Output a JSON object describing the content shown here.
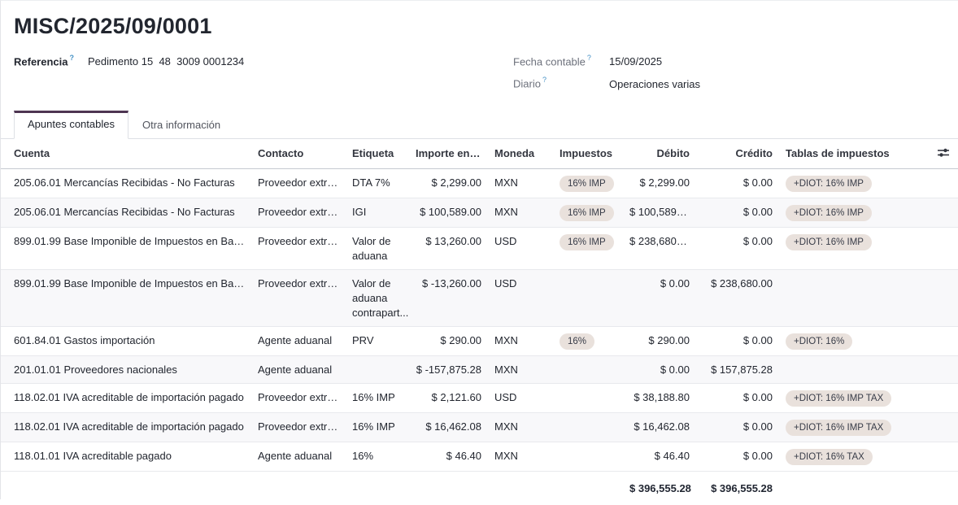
{
  "page": {
    "title": "MISC/2025/09/0001",
    "fields": {
      "referencia": {
        "label": "Referencia",
        "help": "?",
        "value": "Pedimento 15  48  3009 0001234"
      },
      "fecha_contable": {
        "label": "Fecha contable",
        "help": "?",
        "value": "15/09/2025"
      },
      "diario": {
        "label": "Diario",
        "help": "?",
        "value": "Operaciones varias"
      }
    },
    "tabs": [
      {
        "label": "Apuntes contables",
        "active": true
      },
      {
        "label": "Otra información",
        "active": false
      }
    ],
    "table": {
      "columns": [
        "Cuenta",
        "Contacto",
        "Etiqueta",
        "Importe en m...",
        "Moneda",
        "Impuestos",
        "Débito",
        "Crédito",
        "Tablas de impuestos"
      ],
      "rows": [
        {
          "cuenta": "205.06.01 Mercancías Recibidas - No Facturas",
          "contacto": "Proveedor extra...",
          "etiqueta": "DTA 7%",
          "importe": "$ 2,299.00",
          "moneda": "MXN",
          "impuestos": "16% IMP",
          "debito": "$ 2,299.00",
          "credito": "$ 0.00",
          "tablas": "+DIOT: 16% IMP"
        },
        {
          "cuenta": "205.06.01 Mercancías Recibidas - No Facturas",
          "contacto": "Proveedor extra...",
          "etiqueta": "IGI",
          "importe": "$ 100,589.00",
          "moneda": "MXN",
          "impuestos": "16% IMP",
          "debito": "$ 100,589.00",
          "credito": "$ 0.00",
          "tablas": "+DIOT: 16% IMP"
        },
        {
          "cuenta": "899.01.99 Base Imponible de Impuestos en Base ...",
          "contacto": "Proveedor extra...",
          "etiqueta": "Valor de aduana",
          "importe": "$ 13,260.00",
          "moneda": "USD",
          "impuestos": "16% IMP",
          "debito": "$ 238,680.00",
          "credito": "$ 0.00",
          "tablas": "+DIOT: 16% IMP"
        },
        {
          "cuenta": "899.01.99 Base Imponible de Impuestos en Base ...",
          "contacto": "Proveedor extra...",
          "etiqueta": "Valor de aduana contrapart...",
          "importe": "$ -13,260.00",
          "moneda": "USD",
          "impuestos": "",
          "debito": "$ 0.00",
          "credito": "$ 238,680.00",
          "tablas": ""
        },
        {
          "cuenta": "601.84.01 Gastos importación",
          "contacto": "Agente aduanal",
          "etiqueta": "PRV",
          "importe": "$ 290.00",
          "moneda": "MXN",
          "impuestos": "16%",
          "debito": "$ 290.00",
          "credito": "$ 0.00",
          "tablas": "+DIOT: 16%"
        },
        {
          "cuenta": "201.01.01 Proveedores nacionales",
          "contacto": "Agente aduanal",
          "etiqueta": "",
          "importe": "$ -157,875.28",
          "moneda": "MXN",
          "impuestos": "",
          "debito": "$ 0.00",
          "credito": "$ 157,875.28",
          "tablas": ""
        },
        {
          "cuenta": "118.02.01 IVA acreditable de importación pagado",
          "contacto": "Proveedor extra...",
          "etiqueta": "16% IMP",
          "importe": "$ 2,121.60",
          "moneda": "USD",
          "impuestos": "",
          "debito": "$ 38,188.80",
          "credito": "$ 0.00",
          "tablas": "+DIOT: 16% IMP TAX"
        },
        {
          "cuenta": "118.02.01 IVA acreditable de importación pagado",
          "contacto": "Proveedor extra...",
          "etiqueta": "16% IMP",
          "importe": "$ 16,462.08",
          "moneda": "MXN",
          "impuestos": "",
          "debito": "$ 16,462.08",
          "credito": "$ 0.00",
          "tablas": "+DIOT: 16% IMP TAX"
        },
        {
          "cuenta": "118.01.01 IVA acreditable pagado",
          "contacto": "Agente aduanal",
          "etiqueta": "16%",
          "importe": "$ 46.40",
          "moneda": "MXN",
          "impuestos": "",
          "debito": "$ 46.40",
          "credito": "$ 0.00",
          "tablas": "+DIOT: 16% TAX"
        }
      ],
      "totals": {
        "debito": "$ 396,555.28",
        "credito": "$ 396,555.28"
      }
    },
    "colors": {
      "tab_indicator": "#4e3552",
      "badge_bg": "#e9e1dc",
      "text_dark": "#22262f",
      "text_muted": "#6d717c",
      "help_blue": "#4591c5",
      "stripe": "#f8f8fa"
    }
  }
}
